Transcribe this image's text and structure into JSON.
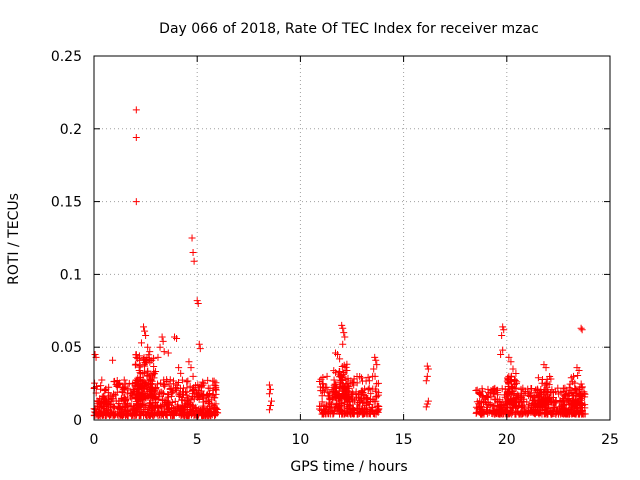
{
  "chart_data": {
    "type": "scatter",
    "title": "Day 066 of 2018, Rate Of TEC Index for receiver mzac",
    "xlabel": "GPS time / hours",
    "ylabel": "ROTI / TECUs",
    "xlim": [
      0,
      25
    ],
    "ylim": [
      0,
      0.25
    ],
    "xticks": [
      0,
      5,
      10,
      15,
      20,
      25
    ],
    "xtick_labels": [
      "0",
      "5",
      "10",
      "15",
      "20",
      "25"
    ],
    "yticks": [
      0,
      0.05,
      0.1,
      0.15,
      0.2,
      0.25
    ],
    "ytick_labels": [
      "0",
      "0.05",
      "0.1",
      "0.15",
      "0.2",
      "0.25"
    ],
    "grid": true,
    "marker": "+",
    "color": "#ff0000",
    "series": [
      {
        "name": "ROTI",
        "points": [
          [
            2.05,
            0.213
          ],
          [
            2.05,
            0.194
          ],
          [
            2.05,
            0.15
          ],
          [
            4.75,
            0.125
          ],
          [
            4.8,
            0.115
          ],
          [
            4.85,
            0.109
          ],
          [
            5.0,
            0.082
          ],
          [
            5.05,
            0.08
          ],
          [
            5.1,
            0.052
          ],
          [
            5.15,
            0.049
          ],
          [
            0.05,
            0.045
          ],
          [
            0.1,
            0.043
          ],
          [
            0.9,
            0.041
          ],
          [
            2.4,
            0.064
          ],
          [
            2.45,
            0.061
          ],
          [
            2.5,
            0.058
          ],
          [
            2.3,
            0.053
          ],
          [
            2.6,
            0.05
          ],
          [
            2.7,
            0.047
          ],
          [
            2.2,
            0.044
          ],
          [
            2.8,
            0.041
          ],
          [
            3.3,
            0.057
          ],
          [
            3.35,
            0.054
          ],
          [
            3.2,
            0.05
          ],
          [
            3.4,
            0.047
          ],
          [
            3.6,
            0.046
          ],
          [
            3.1,
            0.043
          ],
          [
            3.9,
            0.057
          ],
          [
            4.0,
            0.056
          ],
          [
            4.1,
            0.036
          ],
          [
            4.2,
            0.032
          ],
          [
            4.6,
            0.04
          ],
          [
            4.7,
            0.036
          ],
          [
            4.8,
            0.03
          ],
          [
            8.5,
            0.024
          ],
          [
            8.55,
            0.021
          ],
          [
            8.5,
            0.018
          ],
          [
            8.6,
            0.013
          ],
          [
            8.55,
            0.01
          ],
          [
            8.5,
            0.007
          ],
          [
            11.0,
            0.028
          ],
          [
            11.1,
            0.025
          ],
          [
            11.7,
            0.046
          ],
          [
            11.8,
            0.045
          ],
          [
            11.9,
            0.042
          ],
          [
            12.0,
            0.065
          ],
          [
            12.05,
            0.063
          ],
          [
            12.1,
            0.06
          ],
          [
            12.15,
            0.057
          ],
          [
            12.05,
            0.052
          ],
          [
            13.6,
            0.043
          ],
          [
            13.65,
            0.041
          ],
          [
            13.7,
            0.038
          ],
          [
            13.55,
            0.035
          ],
          [
            13.5,
            0.03
          ],
          [
            16.15,
            0.037
          ],
          [
            16.2,
            0.035
          ],
          [
            16.15,
            0.03
          ],
          [
            16.1,
            0.027
          ],
          [
            16.2,
            0.013
          ],
          [
            16.15,
            0.011
          ],
          [
            16.1,
            0.009
          ],
          [
            19.8,
            0.064
          ],
          [
            19.85,
            0.062
          ],
          [
            19.75,
            0.058
          ],
          [
            19.8,
            0.048
          ],
          [
            19.7,
            0.045
          ],
          [
            20.1,
            0.043
          ],
          [
            20.2,
            0.04
          ],
          [
            20.3,
            0.035
          ],
          [
            21.8,
            0.038
          ],
          [
            21.9,
            0.036
          ],
          [
            23.6,
            0.063
          ],
          [
            23.65,
            0.062
          ],
          [
            23.4,
            0.036
          ],
          [
            23.5,
            0.034
          ]
        ],
        "dense_bands": [
          {
            "x": [
              0.0,
              6.0
            ],
            "y": [
              0.003,
              0.028
            ],
            "count": 700
          },
          {
            "x": [
              2.0,
              3.0
            ],
            "y": [
              0.015,
              0.045
            ],
            "count": 120
          },
          {
            "x": [
              10.9,
              13.8
            ],
            "y": [
              0.004,
              0.03
            ],
            "count": 280
          },
          {
            "x": [
              11.6,
              12.4
            ],
            "y": [
              0.015,
              0.04
            ],
            "count": 80
          },
          {
            "x": [
              18.5,
              23.8
            ],
            "y": [
              0.004,
              0.022
            ],
            "count": 520
          },
          {
            "x": [
              20.0,
              20.5
            ],
            "y": [
              0.012,
              0.032
            ],
            "count": 50
          },
          {
            "x": [
              21.5,
              22.2
            ],
            "y": [
              0.01,
              0.03
            ],
            "count": 50
          },
          {
            "x": [
              23.0,
              23.7
            ],
            "y": [
              0.01,
              0.032
            ],
            "count": 50
          }
        ]
      }
    ]
  }
}
